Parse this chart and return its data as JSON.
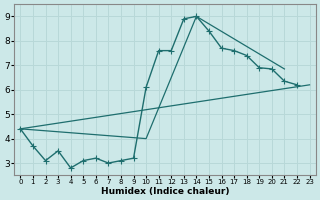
{
  "xlabel": "Humidex (Indice chaleur)",
  "background_color": "#cce8e8",
  "grid_color": "#b8d8d8",
  "line_color": "#1e6e6e",
  "xlim": [
    -0.5,
    23.5
  ],
  "ylim": [
    2.5,
    9.5
  ],
  "xticks": [
    0,
    1,
    2,
    3,
    4,
    5,
    6,
    7,
    8,
    9,
    10,
    11,
    12,
    13,
    14,
    15,
    16,
    17,
    18,
    19,
    20,
    21,
    22,
    23
  ],
  "yticks": [
    3,
    4,
    5,
    6,
    7,
    8,
    9
  ],
  "series_main": {
    "x": [
      0,
      1,
      2,
      3,
      4,
      5,
      6,
      7,
      8,
      9,
      10,
      11,
      12,
      13,
      14,
      15,
      16,
      17,
      18,
      19,
      20,
      21,
      22
    ],
    "y": [
      4.4,
      3.7,
      3.1,
      3.5,
      2.8,
      3.1,
      3.2,
      3.0,
      3.1,
      3.2,
      6.1,
      7.6,
      7.6,
      8.9,
      9.0,
      8.4,
      7.7,
      7.6,
      7.4,
      6.9,
      6.85,
      6.35,
      6.2
    ]
  },
  "series_diag1": {
    "x": [
      0,
      10,
      14,
      21
    ],
    "y": [
      4.4,
      4.0,
      9.0,
      6.85
    ]
  },
  "series_diag2": {
    "x": [
      0,
      23
    ],
    "y": [
      4.4,
      6.2
    ]
  }
}
